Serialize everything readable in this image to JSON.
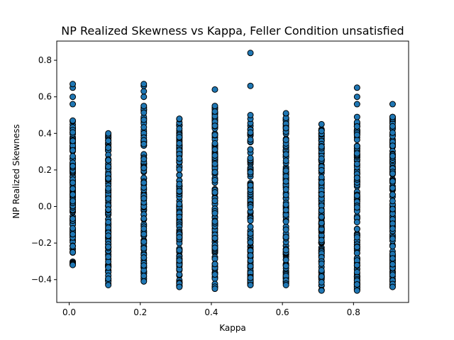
{
  "chart_data": {
    "type": "scatter",
    "title": "NP Realized Skewness vs Kappa, Feller Condition unsatisfied",
    "xlabel": "Kappa",
    "ylabel": "NP Realized Skewness",
    "xlim": [
      -0.035,
      0.955
    ],
    "ylim": [
      -0.525,
      0.905
    ],
    "xticks": [
      0.0,
      0.2,
      0.4,
      0.6,
      0.8
    ],
    "xtick_labels": [
      "0.0",
      "0.2",
      "0.4",
      "0.6",
      "0.8"
    ],
    "yticks": [
      -0.4,
      -0.2,
      0.0,
      0.2,
      0.4,
      0.6,
      0.8
    ],
    "ytick_labels": [
      "−0.4",
      "−0.2",
      "0.0",
      "0.2",
      "0.4",
      "0.6",
      "0.8"
    ],
    "grid": false,
    "legend": "none",
    "marker_color": "#1f77b4",
    "marker_edge": "#000000",
    "groups": [
      {
        "x": 0.01,
        "min": -0.32,
        "max": 0.47,
        "extras": [
          0.56,
          0.6,
          0.65,
          0.67
        ]
      },
      {
        "x": 0.11,
        "min": -0.43,
        "max": 0.4,
        "extras": []
      },
      {
        "x": 0.21,
        "min": -0.41,
        "max": 0.55,
        "extras": [
          0.6,
          0.63,
          0.66,
          0.67
        ]
      },
      {
        "x": 0.31,
        "min": -0.44,
        "max": 0.48,
        "extras": []
      },
      {
        "x": 0.41,
        "min": -0.45,
        "max": 0.55,
        "extras": [
          0.64
        ]
      },
      {
        "x": 0.51,
        "min": -0.43,
        "max": 0.5,
        "extras": [
          0.66,
          0.84
        ]
      },
      {
        "x": 0.61,
        "min": -0.43,
        "max": 0.51,
        "extras": []
      },
      {
        "x": 0.71,
        "min": -0.46,
        "max": 0.45,
        "extras": []
      },
      {
        "x": 0.81,
        "min": -0.46,
        "max": 0.49,
        "extras": [
          0.56,
          0.6,
          0.65
        ]
      },
      {
        "x": 0.91,
        "min": -0.44,
        "max": 0.49,
        "extras": [
          0.56
        ]
      }
    ]
  }
}
